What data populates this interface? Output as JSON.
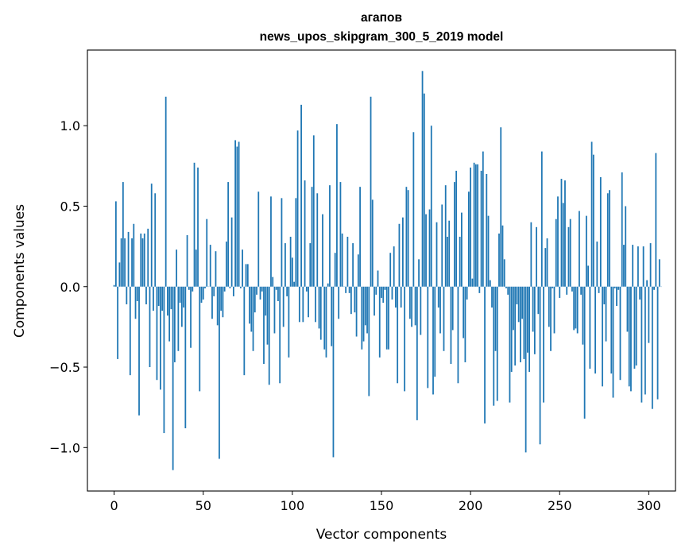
{
  "chart_data": {
    "type": "bar",
    "title": "агапов",
    "subtitle": "news_upos_skipgram_300_5_2019 model",
    "xlabel": "Vector components",
    "ylabel": "Components values",
    "xlim": [
      -15,
      315
    ],
    "ylim": [
      -1.27,
      1.47
    ],
    "xticks": [
      0,
      50,
      100,
      150,
      200,
      250,
      300
    ],
    "xtick_labels": [
      "0",
      "50",
      "100",
      "150",
      "200",
      "250",
      "300"
    ],
    "yticks": [
      -1.0,
      -0.5,
      0.0,
      0.5,
      1.0
    ],
    "ytick_labels": [
      "−1.0",
      "−0.5",
      "0.0",
      "0.5",
      "1.0"
    ],
    "bar_color": "#1f77b4",
    "grid": false,
    "values": [
      0.01,
      0.53,
      -0.45,
      0.15,
      0.3,
      0.65,
      0.3,
      -0.11,
      0.34,
      -0.55,
      0.3,
      0.39,
      -0.2,
      -0.09,
      -0.8,
      0.33,
      0.3,
      0.33,
      -0.11,
      0.36,
      -0.5,
      0.64,
      -0.15,
      0.58,
      -0.58,
      -0.12,
      -0.64,
      -0.15,
      -0.91,
      1.18,
      -0.18,
      -0.34,
      -0.14,
      -1.14,
      -0.47,
      0.23,
      -0.4,
      -0.1,
      -0.25,
      -0.13,
      -0.88,
      0.32,
      -0.02,
      -0.38,
      -0.03,
      0.77,
      0.23,
      0.74,
      -0.65,
      -0.1,
      -0.08,
      -0.01,
      0.42,
      0.0,
      0.26,
      -0.2,
      -0.06,
      0.22,
      -0.24,
      -1.07,
      -0.15,
      -0.19,
      -0.03,
      0.28,
      0.65,
      -0.01,
      0.43,
      -0.06,
      0.91,
      0.87,
      0.9,
      -0.01,
      0.23,
      -0.55,
      0.14,
      0.14,
      -0.23,
      -0.28,
      -0.4,
      -0.16,
      -0.05,
      0.59,
      -0.08,
      -0.03,
      -0.48,
      -0.18,
      -0.36,
      -0.61,
      0.56,
      0.06,
      -0.29,
      -0.02,
      -0.09,
      -0.6,
      0.55,
      -0.25,
      0.27,
      -0.06,
      -0.44,
      0.31,
      0.18,
      0.03,
      0.55,
      0.97,
      -0.22,
      1.13,
      -0.22,
      0.66,
      -0.03,
      -0.19,
      0.27,
      0.62,
      0.94,
      -0.22,
      0.58,
      -0.26,
      -0.33,
      0.45,
      -0.39,
      -0.44,
      0.02,
      0.63,
      -0.37,
      -1.06,
      0.21,
      1.01,
      -0.2,
      0.65,
      0.33,
      0.0,
      -0.04,
      0.31,
      -0.04,
      -0.17,
      0.27,
      -0.16,
      -0.31,
      0.2,
      0.62,
      -0.39,
      -0.34,
      -0.24,
      -0.29,
      -0.68,
      1.18,
      0.54,
      -0.18,
      -0.05,
      0.1,
      -0.44,
      -0.07,
      -0.1,
      -0.02,
      -0.39,
      -0.39,
      0.21,
      -0.08,
      0.25,
      -0.13,
      -0.6,
      0.39,
      -0.13,
      0.43,
      -0.65,
      0.62,
      0.6,
      -0.2,
      -0.25,
      0.96,
      -0.24,
      -0.83,
      0.17,
      -0.3,
      1.34,
      1.2,
      0.45,
      -0.63,
      0.48,
      1.0,
      -0.67,
      -0.56,
      0.4,
      -0.13,
      -0.29,
      0.51,
      -0.4,
      0.63,
      0.31,
      0.41,
      -0.48,
      -0.27,
      0.65,
      0.72,
      -0.6,
      0.31,
      0.46,
      -0.32,
      -0.47,
      -0.08,
      0.59,
      0.74,
      0.05,
      0.77,
      0.76,
      0.76,
      -0.04,
      0.72,
      0.84,
      -0.85,
      0.7,
      0.44,
      0.04,
      -0.13,
      -0.74,
      -0.4,
      -0.71,
      0.33,
      0.99,
      0.38,
      0.17,
      -0.01,
      -0.05,
      -0.72,
      -0.53,
      -0.27,
      -0.49,
      -0.11,
      -0.22,
      -0.47,
      -0.2,
      -0.45,
      -1.03,
      -0.41,
      -0.53,
      0.4,
      -0.28,
      -0.42,
      0.37,
      -0.17,
      -0.98,
      0.84,
      -0.72,
      0.24,
      0.3,
      -0.25,
      -0.4,
      -0.01,
      -0.29,
      0.42,
      0.56,
      -0.07,
      0.67,
      0.52,
      0.66,
      -0.05,
      0.37,
      0.42,
      -0.03,
      -0.27,
      -0.26,
      -0.29,
      0.47,
      -0.05,
      -0.36,
      -0.82,
      0.44,
      0.13,
      -0.51,
      0.9,
      0.82,
      -0.54,
      0.28,
      -0.04,
      0.68,
      -0.62,
      -0.11,
      -0.34,
      0.58,
      0.6,
      -0.54,
      -0.69,
      -0.01,
      -0.12,
      -0.02,
      -0.58,
      0.71,
      0.26,
      0.5,
      -0.28,
      -0.62,
      -0.65,
      0.26,
      -0.51,
      -0.49,
      0.25,
      -0.08,
      -0.72,
      0.25,
      -0.67,
      0.04,
      -0.35,
      0.27,
      -0.76,
      -0.02,
      0.83,
      -0.7,
      0.17,
      0.0
    ]
  }
}
